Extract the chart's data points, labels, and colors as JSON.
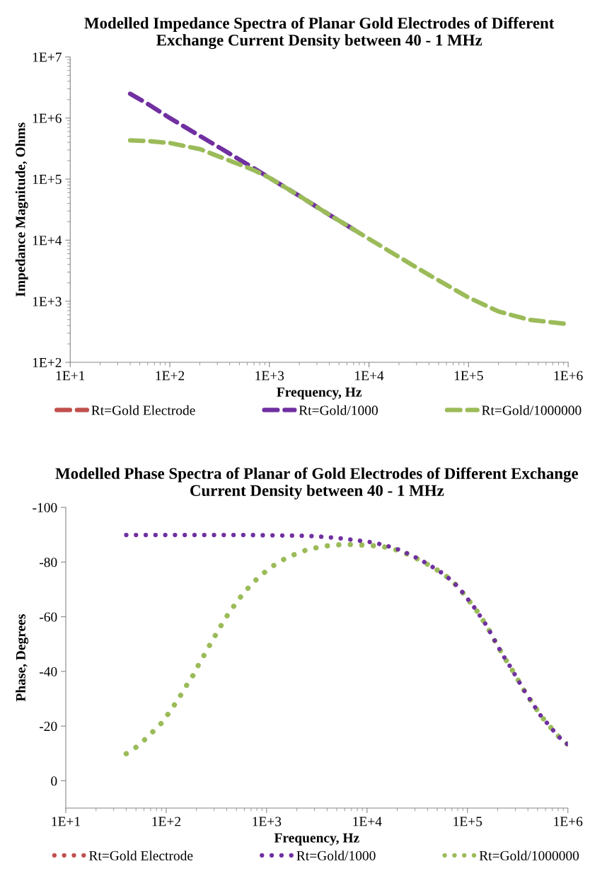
{
  "chart_data": [
    {
      "type": "line",
      "title": "Modelled Impedance Spectra of Planar Gold Electrodes of Different Exchange Current Density between 40 - 1 MHz",
      "xlabel": "Frequency, Hz",
      "ylabel": "Impedance Magnitude, Ohms",
      "log": "xy",
      "line_style": "dashed",
      "legend": "bottom",
      "grid": false,
      "xlim": [
        10,
        1000000
      ],
      "xticks": [
        {
          "value": 10,
          "label": "1E+1"
        },
        {
          "value": 100,
          "label": "1E+2"
        },
        {
          "value": 1000,
          "label": "1E+3"
        },
        {
          "value": 10000,
          "label": "1E+4"
        },
        {
          "value": 100000,
          "label": "1E+5"
        },
        {
          "value": 1000000,
          "label": "1E+6"
        }
      ],
      "ylim": [
        100,
        10000000
      ],
      "yticks": [
        {
          "value": 100,
          "label": "1E+2"
        },
        {
          "value": 1000,
          "label": "1E+3"
        },
        {
          "value": 10000,
          "label": "1E+4"
        },
        {
          "value": 100000,
          "label": "1E+5"
        },
        {
          "value": 1000000,
          "label": "1E+6"
        },
        {
          "value": 10000000,
          "label": "1E+7"
        }
      ],
      "series": [
        {
          "name": "Rt=Gold Electrode",
          "color": "#c0504d"
        },
        {
          "name": "Rt=Gold/1000",
          "color": "#7030a0",
          "x": [
            40,
            60,
            100,
            200,
            400,
            700,
            1000,
            2000,
            4000,
            7000
          ],
          "values": [
            2500000,
            1700000,
            1000000,
            510000,
            260000,
            150000,
            105000,
            53000,
            26000,
            15000
          ]
        },
        {
          "name": "Rt=Gold/1000000",
          "color": "#9bbb59",
          "x": [
            40,
            60,
            100,
            200,
            400,
            700,
            1000,
            2000,
            4000,
            7000,
            10000,
            20000,
            40000,
            70000,
            100000,
            200000,
            400000,
            700000,
            900000
          ],
          "values": [
            430000,
            420000,
            390000,
            310000,
            200000,
            140000,
            105000,
            53000,
            26000,
            15000,
            10500,
            5300,
            2700,
            1600,
            1150,
            680,
            500,
            450,
            430
          ]
        }
      ]
    },
    {
      "type": "line",
      "title": "Modelled Phase Spectra of Planar of Gold Electrodes of Different Exchange Current Density between 40 - 1 MHz",
      "xlabel": "Frequency, Hz",
      "ylabel": "Phase, Degrees",
      "log": "x",
      "line_style": "dotted",
      "legend": "bottom",
      "grid": false,
      "xlim": [
        10,
        1000000
      ],
      "xticks": [
        {
          "value": 10,
          "label": "1E+1"
        },
        {
          "value": 100,
          "label": "1E+2"
        },
        {
          "value": 1000,
          "label": "1E+3"
        },
        {
          "value": 10000,
          "label": "1E+4"
        },
        {
          "value": 100000,
          "label": "1E+5"
        },
        {
          "value": 1000000,
          "label": "1E+6"
        }
      ],
      "ylim": [
        10,
        -100
      ],
      "yticks": [
        -100,
        -80,
        -60,
        -40,
        -20,
        0
      ],
      "series": [
        {
          "name": "Rt=Gold Electrode",
          "color": "#c0504d"
        },
        {
          "name": "Rt=Gold/1000",
          "color": "#7030a0",
          "x": [
            40,
            100,
            252,
            634,
            1005,
            1592,
            2524,
            3177,
            4000,
            5036,
            6340,
            7982,
            10048,
            12649,
            14650,
            18320,
            23120,
            28430,
            34670,
            41210,
            49870,
            59720,
            69180,
            80750,
            93500,
            106500,
            122200,
            137800,
            155500,
            172600,
            191100,
            213800,
            239200,
            267500,
            299200,
            334800,
            374500,
            418900,
            476600,
            538000,
            617100,
            708300,
            827400,
            982300
          ],
          "values": [
            -89.9,
            -89.9,
            -89.9,
            -89.9,
            -89.8,
            -89.7,
            -89.6,
            -89.4,
            -89.1,
            -88.8,
            -88.4,
            -87.9,
            -87.5,
            -86.8,
            -86.2,
            -85.3,
            -83.8,
            -82.3,
            -80.7,
            -79.0,
            -77.2,
            -75.3,
            -73.2,
            -70.9,
            -68.0,
            -65.3,
            -62.5,
            -59.5,
            -56.7,
            -53.6,
            -50.6,
            -47.5,
            -44.4,
            -41.7,
            -38.6,
            -35.5,
            -32.5,
            -29.8,
            -26.7,
            -23.8,
            -21.2,
            -18.6,
            -15.8,
            -13.5
          ]
        },
        {
          "name": "Rt=Gold/1000000",
          "color": "#9bbb59",
          "x": [
            40,
            48,
            57,
            67,
            78,
            91,
            103,
            117,
            132,
            148,
            166,
            186,
            206,
            230,
            255,
            286,
            319,
            357,
            400,
            451,
            513,
            589,
            682,
            789,
            931,
            1105,
            1324,
            1615,
            1986,
            2443,
            3005,
            3724,
            4624,
            5781,
            7228,
            9125,
            11315,
            14650,
            18320,
            23120,
            28430,
            34670,
            41210,
            49870,
            59720,
            69180,
            80750,
            93500,
            106500,
            122200,
            137800,
            155500,
            172600,
            191100,
            213800,
            239200,
            267500,
            299200,
            334800,
            374500,
            418900,
            476600,
            538000,
            617100,
            708300,
            827400,
            982300
          ],
          "values": [
            -9.9,
            -11.7,
            -14.0,
            -16.4,
            -18.9,
            -21.3,
            -24.1,
            -27.0,
            -29.9,
            -32.9,
            -35.9,
            -38.7,
            -41.9,
            -44.9,
            -47.9,
            -51.1,
            -54.1,
            -57.2,
            -60.1,
            -62.9,
            -65.8,
            -68.6,
            -71.2,
            -73.6,
            -75.9,
            -78.1,
            -80.0,
            -81.7,
            -83.1,
            -84.3,
            -85.1,
            -85.8,
            -86.2,
            -86.4,
            -86.4,
            -86.2,
            -86.0,
            -85.6,
            -84.8,
            -83.5,
            -82.0,
            -80.5,
            -78.9,
            -77.1,
            -75.2,
            -73.2,
            -70.9,
            -68.0,
            -65.3,
            -62.5,
            -59.5,
            -56.7,
            -53.6,
            -50.6,
            -47.5,
            -44.4,
            -41.7,
            -38.6,
            -35.5,
            -32.5,
            -29.8,
            -26.7,
            -23.8,
            -21.2,
            -18.6,
            -15.8,
            -13.5
          ]
        }
      ]
    }
  ]
}
